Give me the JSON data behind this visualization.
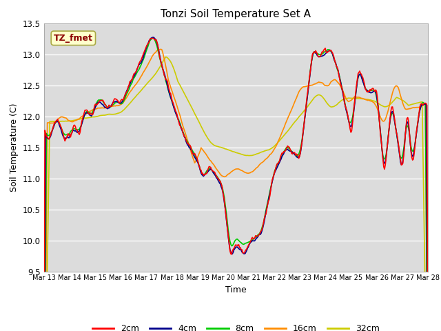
{
  "title": "Tonzi Soil Temperature Set A",
  "xlabel": "Time",
  "ylabel": "Soil Temperature (C)",
  "ylim": [
    9.5,
    13.5
  ],
  "annotation": "TZ_fmet",
  "annotation_color": "#8B0000",
  "annotation_bg": "#FFFFCC",
  "plot_bg_color": "#DCDCDC",
  "fig_bg_color": "#FFFFFF",
  "series_colors": {
    "2cm": "#FF0000",
    "4cm": "#00008B",
    "8cm": "#00CC00",
    "16cm": "#FF8C00",
    "32cm": "#CCCC00"
  },
  "x_tick_labels": [
    "Mar 13",
    "Mar 14",
    "Mar 15",
    "Mar 16",
    "Mar 17",
    "Mar 18",
    "Mar 19",
    "Mar 20",
    "Mar 21",
    "Mar 22",
    "Mar 23",
    "Mar 24",
    "Mar 25",
    "Mar 26",
    "Mar 27",
    "Mar 28"
  ],
  "n_points": 480,
  "grid_color": "#FFFFFF",
  "line_width": 1.2
}
